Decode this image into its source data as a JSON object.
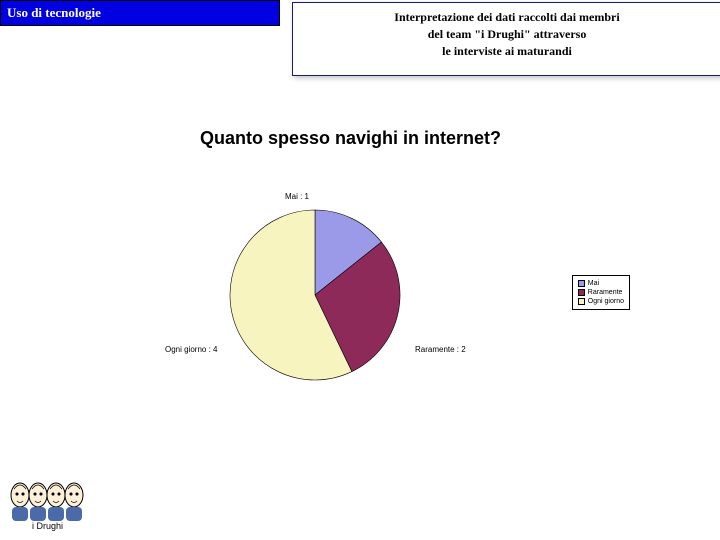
{
  "header": {
    "title": "Uso di tecnologie",
    "description_line1": "Interpretazione dei dati raccolti dai membri",
    "description_line2": "del team \"i Drughi\" attraverso",
    "description_line3": "le interviste ai maturandi"
  },
  "question": "Quanto spesso navighi in internet?",
  "chart": {
    "type": "pie",
    "background_color": "#ffffff",
    "slices": [
      {
        "label": "Mai",
        "value": 1,
        "color": "#9a9ae8",
        "label_text": "Mai : 1"
      },
      {
        "label": "Raramente",
        "value": 2,
        "color": "#8e2a5a",
        "label_text": "Raramente : 2"
      },
      {
        "label": "Ogni giorno",
        "value": 4,
        "color": "#f8f4c0",
        "label_text": "Ogni giorno : 4"
      }
    ],
    "legend": {
      "items": [
        {
          "label": "Mai",
          "color": "#9a9ae8"
        },
        {
          "label": "Raramente",
          "color": "#8e2a5a"
        },
        {
          "label": "Ogni giorno",
          "color": "#f8f4c0"
        }
      ]
    },
    "label_fontsize": 8,
    "legend_fontsize": 7
  },
  "logo": {
    "caption": "i Drughi"
  }
}
